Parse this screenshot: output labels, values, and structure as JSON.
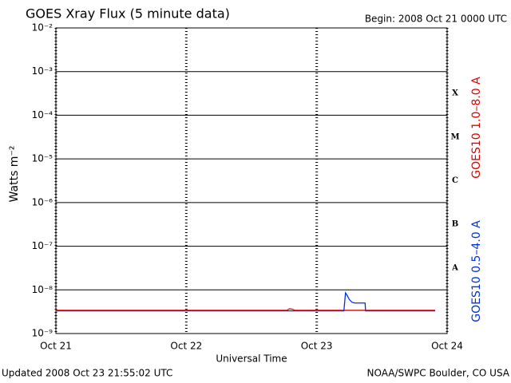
{
  "chart_data": {
    "type": "line",
    "title": "GOES Xray Flux (5 minute data)",
    "subtitle": "Begin:  2008 Oct 21 0000 UTC",
    "y_label": "Watts m⁻²",
    "x_label": "Universal Time",
    "footer_left": "Updated 2008 Oct 23 21:55:02 UTC",
    "footer_right": "NOAA/SWPC Boulder, CO USA",
    "flare_classes": [
      "X",
      "M",
      "C",
      "B",
      "A"
    ],
    "log_y": true,
    "grid": true,
    "xlim": [
      0,
      72
    ],
    "xticks": [
      {
        "value": 0,
        "label": "Oct 21"
      },
      {
        "value": 24,
        "label": "Oct 22"
      },
      {
        "value": 48,
        "label": "Oct 23"
      },
      {
        "value": 72,
        "label": "Oct 24"
      }
    ],
    "ylim": [
      1e-09,
      0.01
    ],
    "yticks": [
      {
        "value": 1e-09,
        "label": "10⁻⁹"
      },
      {
        "value": 1e-08,
        "label": "10⁻⁸"
      },
      {
        "value": 1e-07,
        "label": "10⁻⁷"
      },
      {
        "value": 1e-06,
        "label": "10⁻⁶"
      },
      {
        "value": 1e-05,
        "label": "10⁻⁵"
      },
      {
        "value": 0.0001,
        "label": "10⁻⁴"
      },
      {
        "value": 0.001,
        "label": "10⁻³"
      },
      {
        "value": 0.01,
        "label": "10⁻²"
      }
    ],
    "x": [
      0,
      42.5,
      43,
      43.5,
      44,
      53,
      53.3,
      53.6,
      54,
      54.5,
      55,
      56.9,
      57,
      69.8
    ],
    "series": [
      {
        "name": "GOES10 1.0–8.0 A",
        "color": "#e00000",
        "values": [
          3.4e-09,
          3.4e-09,
          3.7e-09,
          3.6e-09,
          3.4e-09,
          3.4e-09,
          3.4e-09,
          3.4e-09,
          3.4e-09,
          3.4e-09,
          3.4e-09,
          3.4e-09,
          3.4e-09,
          3.4e-09
        ]
      },
      {
        "name": "GOES10 0.5–4.0 A",
        "color": "#0030e0",
        "values": [
          3.3e-09,
          3.3e-09,
          3.3e-09,
          3.3e-09,
          3.3e-09,
          3.3e-09,
          8.5e-09,
          7.5e-09,
          6e-09,
          5.2e-09,
          5e-09,
          5e-09,
          3.3e-09,
          3.3e-09
        ]
      }
    ]
  }
}
